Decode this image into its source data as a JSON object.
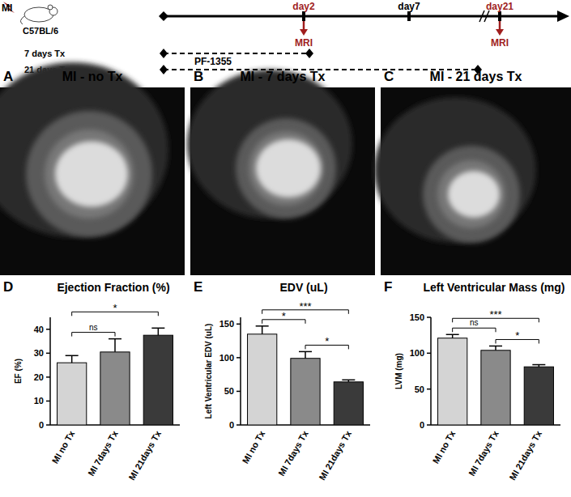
{
  "timeline": {
    "event": "MI",
    "strain": "C57BL/6",
    "days": [
      "day2",
      "day7",
      "day21"
    ],
    "imaging": [
      "MRI",
      "MRI"
    ],
    "treatments": [
      "7 days Tx",
      "21 days Tx"
    ],
    "drug": "PF-1355"
  },
  "images": [
    {
      "letter": "A",
      "title": "MI - no Tx"
    },
    {
      "letter": "B",
      "title": "MI - 7 days Tx"
    },
    {
      "letter": "C",
      "title": "MI - 21 days Tx"
    }
  ],
  "chart_data": [
    {
      "type": "bar",
      "letter": "D",
      "title": "Ejection Fraction (%)",
      "y_label": "EF (%)",
      "categories": [
        "MI no Tx",
        "MI 7days Tx",
        "MI 21days Tx"
      ],
      "values": [
        26,
        30.5,
        37.5
      ],
      "errors": [
        3,
        5.5,
        3
      ],
      "colors": [
        "#d4d4d4",
        "#8a8a8a",
        "#3a3a3a"
      ],
      "ylim": [
        0,
        45
      ],
      "yticks": [
        0,
        10,
        20,
        30,
        40
      ],
      "significance": [
        {
          "from": 0,
          "to": 1,
          "label": "ns"
        },
        {
          "from": 0,
          "to": 2,
          "label": "*"
        }
      ]
    },
    {
      "type": "bar",
      "letter": "E",
      "title": "EDV (uL)",
      "y_label": "Left Ventricular EDV (uL)",
      "categories": [
        "MI no Tx",
        "MI 7days Tx",
        "MI 21days Tx"
      ],
      "values": [
        135,
        99,
        64
      ],
      "errors": [
        12,
        10,
        3
      ],
      "colors": [
        "#d4d4d4",
        "#8a8a8a",
        "#3a3a3a"
      ],
      "ylim": [
        0,
        160
      ],
      "yticks": [
        0,
        50,
        100,
        150
      ],
      "significance": [
        {
          "from": 0,
          "to": 1,
          "label": "*"
        },
        {
          "from": 0,
          "to": 2,
          "label": "***"
        },
        {
          "from": 1,
          "to": 2,
          "label": "*"
        }
      ]
    },
    {
      "type": "bar",
      "letter": "F",
      "title": "Left Ventricular Mass (mg)",
      "y_label": "LVM (mg)",
      "categories": [
        "MI no Tx",
        "MI 7days Tx",
        "MI 21days Tx"
      ],
      "values": [
        121,
        104,
        81
      ],
      "errors": [
        5,
        6,
        3
      ],
      "colors": [
        "#d4d4d4",
        "#8a8a8a",
        "#3a3a3a"
      ],
      "ylim": [
        0,
        150
      ],
      "yticks": [
        0,
        50,
        100,
        150
      ],
      "significance": [
        {
          "from": 0,
          "to": 1,
          "label": "ns"
        },
        {
          "from": 0,
          "to": 2,
          "label": "***"
        },
        {
          "from": 1,
          "to": 2,
          "label": "*"
        }
      ]
    }
  ]
}
